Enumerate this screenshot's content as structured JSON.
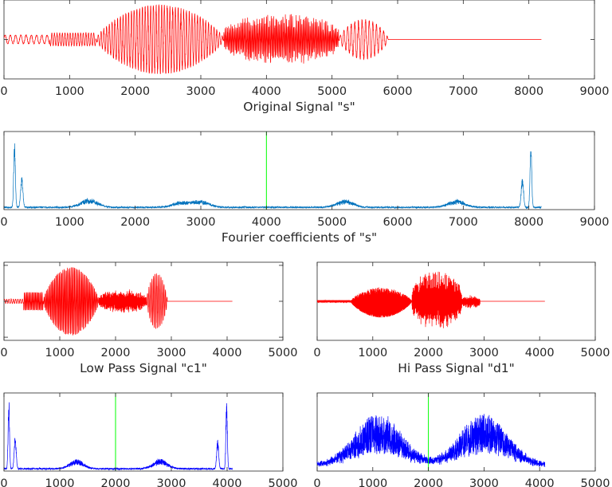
{
  "chart_data": [
    {
      "id": "original",
      "type": "line",
      "title": "",
      "xlabel": "Original Signal \"s\"",
      "ylabel": "",
      "xlim": [
        0,
        9000
      ],
      "xticks": [
        0,
        1000,
        2000,
        3000,
        4000,
        5000,
        6000,
        7000,
        8000,
        9000
      ],
      "yticks": [
        0
      ],
      "grid": false,
      "color": "#ff0000",
      "kind": "signal",
      "n": 8192,
      "signal_end": 5860,
      "segments": [
        {
          "start": 0,
          "end": 700,
          "amp": 0.12,
          "period": 80
        },
        {
          "start": 700,
          "end": 1400,
          "amp": 0.18,
          "period": 40
        },
        {
          "start": 1400,
          "end": 3350,
          "amp": 0.95,
          "period": 42,
          "envelope": "hump"
        },
        {
          "start": 3350,
          "end": 5100,
          "amp": 0.72,
          "period": 18,
          "envelope": "noise"
        },
        {
          "start": 5100,
          "end": 5860,
          "amp": 0.55,
          "period": 55,
          "envelope": "hump"
        }
      ]
    },
    {
      "id": "fourier-s",
      "type": "line",
      "title": "",
      "xlabel": "Fourier coefficients of \"s\"",
      "ylabel": "",
      "xlim": [
        0,
        9000
      ],
      "xticks": [
        0,
        1000,
        2000,
        3000,
        4000,
        5000,
        6000,
        7000,
        8000,
        9000
      ],
      "grid": false,
      "color": "#0072bd",
      "marker_x": 4000,
      "marker_color": "#00ff00",
      "kind": "spectrum",
      "n": 8192,
      "peaks": [
        [
          160,
          0.9
        ],
        [
          270,
          0.4
        ],
        [
          1300,
          0.12
        ],
        [
          2700,
          0.08
        ],
        [
          3000,
          0.09
        ],
        [
          5200,
          0.1
        ],
        [
          6900,
          0.1
        ],
        [
          7900,
          0.4
        ],
        [
          8030,
          0.9
        ]
      ]
    },
    {
      "id": "low-pass",
      "type": "line",
      "title": "",
      "xlabel": "Low Pass Signal \"c1\"",
      "ylabel": "",
      "xlim": [
        0,
        5000
      ],
      "xticks": [
        0,
        1000,
        2000,
        3000,
        4000,
        5000
      ],
      "yticks": [
        -1,
        0,
        1
      ],
      "grid": false,
      "color": "#ff0000",
      "kind": "signal",
      "n": 4096,
      "signal_end": 2930,
      "segments": [
        {
          "start": 0,
          "end": 350,
          "amp": 0.06,
          "period": 40
        },
        {
          "start": 350,
          "end": 700,
          "amp": 0.25,
          "period": 20
        },
        {
          "start": 700,
          "end": 1700,
          "amp": 0.95,
          "period": 21,
          "envelope": "hump"
        },
        {
          "start": 1700,
          "end": 2550,
          "amp": 0.35,
          "period": 9,
          "envelope": "noise"
        },
        {
          "start": 2550,
          "end": 2930,
          "amp": 0.78,
          "period": 27,
          "envelope": "hump"
        }
      ]
    },
    {
      "id": "hi-pass",
      "type": "line",
      "title": "",
      "xlabel": "Hi Pass Signal \"d1\"",
      "ylabel": "",
      "xlim": [
        0,
        5000
      ],
      "xticks": [
        0,
        1000,
        2000,
        3000,
        4000,
        5000
      ],
      "grid": false,
      "color": "#ff0000",
      "kind": "signal",
      "n": 4096,
      "signal_end": 2930,
      "segments": [
        {
          "start": 0,
          "end": 600,
          "amp": 0.03,
          "period": 10
        },
        {
          "start": 600,
          "end": 1700,
          "amp": 0.45,
          "period": 6,
          "envelope": "hump"
        },
        {
          "start": 1700,
          "end": 2600,
          "amp": 0.85,
          "period": 5,
          "envelope": "noise"
        },
        {
          "start": 2600,
          "end": 2930,
          "amp": 0.2,
          "period": 6,
          "envelope": "noise"
        }
      ]
    },
    {
      "id": "fourier-c1",
      "type": "line",
      "title": "",
      "xlabel": "",
      "ylabel": "",
      "xlim": [
        0,
        5000
      ],
      "xticks": [
        0,
        1000,
        2000,
        3000,
        4000,
        5000
      ],
      "grid": false,
      "color": "#0000ff",
      "marker_x": 2000,
      "marker_color": "#00ff00",
      "kind": "spectrum",
      "n": 4096,
      "peaks": [
        [
          85,
          0.95
        ],
        [
          200,
          0.45
        ],
        [
          1300,
          0.12
        ],
        [
          2800,
          0.13
        ],
        [
          3830,
          0.4
        ],
        [
          3990,
          0.95
        ]
      ]
    },
    {
      "id": "fourier-d1",
      "type": "line",
      "title": "",
      "xlabel": "",
      "ylabel": "",
      "xlim": [
        0,
        5000
      ],
      "xticks": [
        0,
        1000,
        2000,
        3000,
        4000,
        5000
      ],
      "grid": false,
      "color": "#0000ff",
      "marker_x": 2000,
      "marker_color": "#00ff00",
      "kind": "noisy-spectrum",
      "n": 4096,
      "hump_centers": [
        1100,
        3000
      ],
      "hump_width": 600,
      "hump_amp": 0.55
    }
  ]
}
